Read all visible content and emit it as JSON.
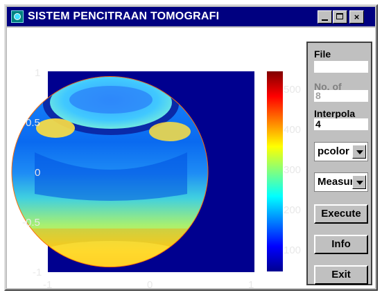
{
  "window": {
    "title": "SISTEM PENCITRAAN TOMOGRAFI"
  },
  "titlebar_buttons": {
    "minimize": "",
    "maximize": "",
    "close": "×"
  },
  "plot": {
    "x_ticks": [
      "-1",
      "0",
      "1"
    ],
    "y_ticks": [
      "1",
      "0.5",
      "0",
      "-0.5",
      "-1"
    ],
    "colorbar_ticks": [
      "500",
      "400",
      "300",
      "200",
      "100"
    ],
    "colors": {
      "background": "#00008f",
      "circle_edge": "#ff6a00"
    }
  },
  "panel": {
    "file_label": "File",
    "file_value": "",
    "nof_label": "No. of",
    "nof_value": "8",
    "interp_label": "Interpola",
    "interp_value": "4",
    "plot_type_value": "pcolor",
    "measure_value": "Measure",
    "execute_label": "Execute",
    "info_label": "Info",
    "exit_label": "Exit"
  }
}
